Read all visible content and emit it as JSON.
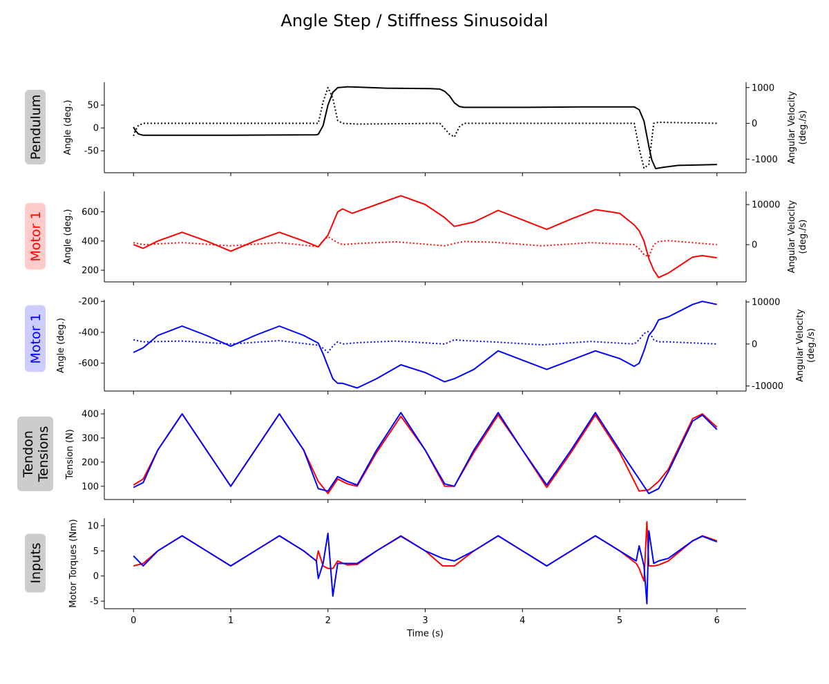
{
  "figure": {
    "title": "Angle Step / Stiffness Sinusoidal"
  },
  "chart_data": [
    {
      "type": "line",
      "row_label": "Pendulum",
      "row_label_color": "#000000",
      "row_label_bg": "#cccccc",
      "xlabel": "",
      "ylabel": "Angle (deg.)",
      "ylabel_right": "Angular Velocity\n(deg./s)",
      "xlim": [
        -0.3,
        6.3
      ],
      "ylim": [
        -98,
        100
      ],
      "y_ticks": [
        -50,
        0,
        50
      ],
      "ylim_right": [
        -1380,
        1150
      ],
      "y_ticks_right": [
        -1000,
        0,
        1000
      ],
      "series": [
        {
          "axis": "left",
          "color": "#000000",
          "style": "solid",
          "x": [
            0,
            0.02,
            0.05,
            0.08,
            0.1,
            0.2,
            1.0,
            1.88,
            1.9,
            1.95,
            2.0,
            2.05,
            2.1,
            2.2,
            2.6,
            3.05,
            3.15,
            3.2,
            3.25,
            3.3,
            3.35,
            3.4,
            4.0,
            4.6,
            5.15,
            5.2,
            5.25,
            5.3,
            5.33,
            5.37,
            5.45,
            5.6,
            6.0
          ],
          "y": [
            2,
            -6,
            -13,
            -15,
            -16,
            -16,
            -16,
            -15,
            -14,
            5,
            50,
            78,
            88,
            90,
            87,
            86,
            85,
            80,
            70,
            55,
            47,
            45,
            45,
            46,
            46,
            40,
            15,
            -40,
            -70,
            -89,
            -86,
            -82,
            -80
          ]
        },
        {
          "axis": "right",
          "color": "#000000",
          "style": "dotted",
          "x": [
            0,
            0.02,
            0.05,
            0.1,
            0.2,
            1.0,
            1.9,
            1.95,
            2.0,
            2.05,
            2.1,
            2.15,
            2.3,
            3.15,
            3.25,
            3.3,
            3.35,
            3.4,
            4.0,
            5.15,
            5.2,
            5.25,
            5.3,
            5.35,
            5.4,
            6.0
          ],
          "y": [
            -350,
            -200,
            -60,
            0,
            0,
            0,
            0,
            600,
            1000,
            700,
            80,
            0,
            -20,
            0,
            -300,
            -380,
            -100,
            0,
            0,
            0,
            -700,
            -1250,
            -1150,
            0,
            30,
            0
          ]
        }
      ]
    },
    {
      "type": "line",
      "row_label": "Motor 1",
      "row_label_color": "#ff0000",
      "row_label_bg": "#ffcccc",
      "xlabel": "",
      "ylabel": "Angle (deg.)",
      "ylabel_right": "Angular Velocity\n(deg./s)",
      "xlim": [
        -0.3,
        6.3
      ],
      "ylim": [
        120,
        740
      ],
      "y_ticks": [
        200,
        400,
        600
      ],
      "ylim_right": [
        -9300,
        13300
      ],
      "y_ticks_right": [
        0,
        10000
      ],
      "series": [
        {
          "axis": "left",
          "color": "#ff0000",
          "style": "solid",
          "x": [
            0,
            0.1,
            0.25,
            0.5,
            0.75,
            1.0,
            1.25,
            1.5,
            1.75,
            1.9,
            2.0,
            2.05,
            2.1,
            2.15,
            2.25,
            2.5,
            2.75,
            3.0,
            3.2,
            3.3,
            3.5,
            3.75,
            4.0,
            4.25,
            4.5,
            4.75,
            5.0,
            5.15,
            5.2,
            5.25,
            5.3,
            5.35,
            5.4,
            5.5,
            5.75,
            5.85,
            6.0
          ],
          "y": [
            375,
            350,
            400,
            460,
            400,
            330,
            400,
            460,
            400,
            360,
            440,
            520,
            600,
            620,
            590,
            650,
            710,
            650,
            560,
            500,
            530,
            610,
            545,
            480,
            550,
            615,
            590,
            510,
            470,
            400,
            280,
            200,
            150,
            180,
            290,
            300,
            285
          ]
        },
        {
          "axis": "right",
          "color": "#ff0000",
          "style": "dotted",
          "x": [
            0,
            0.1,
            0.5,
            1.0,
            1.5,
            1.9,
            1.95,
            2.0,
            2.05,
            2.1,
            2.15,
            2.3,
            2.7,
            3.2,
            3.25,
            3.3,
            3.4,
            3.7,
            4.2,
            4.7,
            5.15,
            5.2,
            5.25,
            5.3,
            5.35,
            5.4,
            5.5,
            6.0
          ],
          "y": [
            500,
            0,
            500,
            -300,
            500,
            -500,
            1000,
            2000,
            1200,
            500,
            0,
            300,
            700,
            -300,
            0,
            300,
            800,
            600,
            -300,
            500,
            0,
            -1000,
            -2500,
            -3000,
            0,
            800,
            1000,
            0
          ]
        }
      ]
    },
    {
      "type": "line",
      "row_label": "Motor 1",
      "row_label_color": "#0000ff",
      "row_label_bg": "#ccccff",
      "xlabel": "",
      "ylabel": "Angle (deg.)",
      "ylabel_right": "Angular Velocity\n(deg./s)",
      "xlim": [
        -0.3,
        6.3
      ],
      "ylim": [
        -780,
        -190
      ],
      "y_ticks": [
        -600,
        -400,
        -200
      ],
      "ylim_right": [
        -11200,
        10500
      ],
      "y_ticks_right": [
        -10000,
        0,
        10000
      ],
      "series": [
        {
          "axis": "left",
          "color": "#0000ff",
          "style": "solid",
          "x": [
            0,
            0.1,
            0.25,
            0.5,
            0.75,
            1.0,
            1.25,
            1.5,
            1.75,
            1.9,
            1.95,
            2.0,
            2.05,
            2.1,
            2.15,
            2.3,
            2.5,
            2.75,
            3.0,
            3.2,
            3.3,
            3.5,
            3.75,
            4.0,
            4.25,
            4.5,
            4.75,
            5.0,
            5.15,
            5.2,
            5.25,
            5.3,
            5.35,
            5.4,
            5.5,
            5.75,
            5.85,
            6.0
          ],
          "y": [
            -530,
            -500,
            -420,
            -360,
            -420,
            -490,
            -420,
            -360,
            -420,
            -470,
            -540,
            -620,
            -700,
            -730,
            -730,
            -760,
            -700,
            -610,
            -660,
            -720,
            -700,
            -640,
            -520,
            -580,
            -640,
            -580,
            -520,
            -570,
            -620,
            -600,
            -520,
            -420,
            -380,
            -320,
            -300,
            -220,
            -200,
            -220
          ]
        },
        {
          "axis": "right",
          "color": "#0000ff",
          "style": "dotted",
          "x": [
            0,
            0.1,
            0.5,
            1.0,
            1.5,
            1.9,
            1.95,
            2.0,
            2.05,
            2.1,
            2.15,
            2.3,
            2.7,
            3.2,
            3.25,
            3.3,
            3.4,
            3.7,
            4.2,
            4.7,
            5.15,
            5.2,
            5.25,
            5.3,
            5.35,
            5.4,
            5.5,
            6.0
          ],
          "y": [
            1000,
            500,
            700,
            0,
            800,
            -300,
            -1000,
            -2000,
            -500,
            500,
            0,
            300,
            700,
            0,
            500,
            1000,
            800,
            500,
            -200,
            600,
            0,
            1000,
            2500,
            3000,
            1000,
            500,
            500,
            0
          ]
        }
      ]
    },
    {
      "type": "line",
      "row_label": "Tendon\nTensions",
      "row_label_color": "#000000",
      "row_label_bg": "#cccccc",
      "xlabel": "",
      "ylabel": "Tension (N)",
      "ylabel_right": "",
      "xlim": [
        -0.3,
        6.3
      ],
      "ylim": [
        45,
        420
      ],
      "y_ticks": [
        100,
        200,
        300,
        400
      ],
      "series": [
        {
          "axis": "left",
          "color": "#ff0000",
          "style": "solid",
          "x": [
            0,
            0.1,
            0.25,
            0.5,
            0.75,
            1.0,
            1.25,
            1.5,
            1.75,
            1.9,
            2.0,
            2.1,
            2.2,
            2.3,
            2.5,
            2.75,
            3.0,
            3.2,
            3.3,
            3.5,
            3.75,
            4.0,
            4.25,
            4.5,
            4.75,
            5.0,
            5.2,
            5.3,
            5.4,
            5.5,
            5.75,
            5.85,
            6.0
          ],
          "y": [
            105,
            130,
            250,
            400,
            250,
            100,
            250,
            400,
            250,
            120,
            70,
            130,
            110,
            100,
            240,
            390,
            250,
            100,
            100,
            240,
            395,
            250,
            95,
            240,
            395,
            240,
            80,
            85,
            120,
            170,
            380,
            400,
            345
          ]
        },
        {
          "axis": "left",
          "color": "#0000ff",
          "style": "solid",
          "x": [
            0,
            0.1,
            0.25,
            0.5,
            0.75,
            1.0,
            1.25,
            1.5,
            1.75,
            1.9,
            2.0,
            2.1,
            2.2,
            2.3,
            2.5,
            2.75,
            3.0,
            3.2,
            3.3,
            3.5,
            3.75,
            4.0,
            4.25,
            4.5,
            4.75,
            5.0,
            5.2,
            5.3,
            5.4,
            5.5,
            5.75,
            5.85,
            6.0
          ],
          "y": [
            95,
            115,
            250,
            400,
            250,
            100,
            250,
            400,
            250,
            90,
            80,
            140,
            120,
            105,
            250,
            405,
            250,
            110,
            100,
            250,
            405,
            250,
            105,
            250,
            405,
            250,
            130,
            70,
            90,
            160,
            370,
            395,
            335
          ]
        }
      ]
    },
    {
      "type": "line",
      "row_label": "Inputs",
      "row_label_color": "#000000",
      "row_label_bg": "#cccccc",
      "xlabel": "Time (s)",
      "ylabel": "Motor Torques (Nm)",
      "ylabel_right": "",
      "x_ticks": [
        0,
        1,
        2,
        3,
        4,
        5,
        6
      ],
      "xlim": [
        -0.3,
        6.3
      ],
      "ylim": [
        -6.5,
        11.5
      ],
      "y_ticks": [
        -5,
        0,
        5,
        10
      ],
      "series": [
        {
          "axis": "left",
          "color": "#ff0000",
          "style": "solid",
          "x": [
            0,
            0.1,
            0.25,
            0.5,
            0.75,
            1.0,
            1.25,
            1.5,
            1.75,
            1.88,
            1.9,
            1.95,
            2.0,
            2.05,
            2.1,
            2.2,
            2.3,
            2.5,
            2.75,
            3.0,
            3.18,
            3.3,
            3.5,
            3.75,
            4.0,
            4.25,
            4.5,
            4.75,
            5.0,
            5.17,
            5.2,
            5.25,
            5.28,
            5.3,
            5.35,
            5.4,
            5.5,
            5.75,
            5.85,
            6.0
          ],
          "y": [
            2,
            2.5,
            5,
            8,
            5,
            2,
            5,
            8,
            5,
            3,
            5,
            2,
            1.5,
            1.5,
            3,
            2.2,
            2.3,
            5,
            8,
            5,
            2,
            2,
            5,
            8,
            5,
            2,
            5,
            8,
            5,
            2.5,
            1.5,
            -1,
            10.8,
            2,
            2,
            2.2,
            3,
            7,
            8,
            7
          ]
        },
        {
          "axis": "left",
          "color": "#0000ff",
          "style": "solid",
          "x": [
            0,
            0.1,
            0.25,
            0.5,
            0.75,
            1.0,
            1.25,
            1.5,
            1.75,
            1.88,
            1.9,
            1.95,
            2.0,
            2.05,
            2.1,
            2.2,
            2.3,
            2.5,
            2.75,
            3.0,
            3.18,
            3.3,
            3.5,
            3.75,
            4.0,
            4.25,
            4.5,
            4.75,
            5.0,
            5.17,
            5.2,
            5.25,
            5.28,
            5.3,
            5.35,
            5.4,
            5.5,
            5.75,
            5.85,
            6.0
          ],
          "y": [
            4,
            2,
            5,
            8,
            5,
            2,
            5,
            8,
            5,
            3,
            -0.5,
            2.5,
            8.5,
            -4,
            2.5,
            2.5,
            2.5,
            5,
            7.9,
            5,
            3.5,
            3,
            5,
            8,
            5,
            2,
            5,
            8,
            5,
            3,
            6,
            2,
            -5.5,
            9,
            2.5,
            3,
            3.5,
            7,
            7.9,
            6.8
          ]
        }
      ]
    }
  ]
}
